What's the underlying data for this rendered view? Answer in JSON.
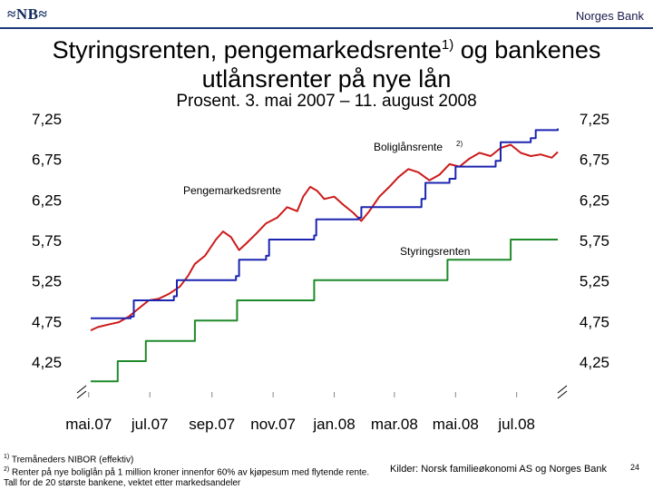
{
  "header": {
    "logo_text": "≈NB≈",
    "bank_name": "Norges Bank"
  },
  "title": {
    "main": "Styringsrenten, pengemarkedsrente",
    "main_sup": "1)",
    "main_rest": " og bankenes",
    "line2": "utlånsrenter på nye lån",
    "subtitle": "Prosent. 3. mai 2007 – 11. august 2008"
  },
  "footer": {
    "note1_marker": "1)",
    "note1": "Tremåneders NIBOR (effektiv)",
    "note2_marker": "2)",
    "note2": "Renter på nye boliglån på 1 million kroner innenfor 60% av kjøpesum med flytende rente. Tall for de 20 største bankene, vektet etter markedsandeler",
    "source": "Kilder: Norsk familieøkonomi AS og Norges Bank",
    "page_number": "24"
  },
  "colors": {
    "policy_rate": "#1f8a2a",
    "money_market": "#cc1a1a",
    "mortgage": "#1c25b0",
    "brand": "#1f3a7a"
  },
  "chart_data": {
    "type": "line",
    "xlim": [
      "2007-05-03",
      "2008-08-11"
    ],
    "ylim": [
      4.25,
      7.25
    ],
    "yticks": [
      7.25,
      6.75,
      6.25,
      5.75,
      5.25,
      4.75,
      4.25
    ],
    "ytick_labels": [
      "7,25",
      "6,75",
      "6,25",
      "5,75",
      "5,25",
      "4,75",
      "4,25"
    ],
    "xtick_labels": [
      "mai.07",
      "jul.07",
      "sep.07",
      "nov.07",
      "jan.08",
      "mar.08",
      "mai.08",
      "jul.08"
    ],
    "xtick_dates": [
      "2007-05-01",
      "2007-07-01",
      "2007-09-01",
      "2007-11-01",
      "2008-01-01",
      "2008-03-01",
      "2008-05-01",
      "2008-07-01"
    ],
    "axis_break": true,
    "grid": false,
    "series": [
      {
        "name": "Styringsrenten",
        "step": true,
        "points": [
          [
            "2007-05-03",
            4.0
          ],
          [
            "2007-05-30",
            4.25
          ],
          [
            "2007-06-27",
            4.5
          ],
          [
            "2007-08-15",
            4.75
          ],
          [
            "2007-09-26",
            5.0
          ],
          [
            "2007-10-31",
            5.0
          ],
          [
            "2007-12-12",
            5.25
          ],
          [
            "2008-03-12",
            5.25
          ],
          [
            "2008-03-13",
            5.25
          ],
          [
            "2008-04-23",
            5.5
          ],
          [
            "2008-06-25",
            5.75
          ],
          [
            "2008-08-11",
            5.75
          ]
        ]
      },
      {
        "name": "Pengemarkedsrente",
        "points": [
          [
            "2007-05-03",
            4.63
          ],
          [
            "2007-05-10",
            4.67
          ],
          [
            "2007-05-20",
            4.7
          ],
          [
            "2007-05-31",
            4.73
          ],
          [
            "2007-06-10",
            4.8
          ],
          [
            "2007-06-20",
            4.9
          ],
          [
            "2007-06-30",
            5.0
          ],
          [
            "2007-07-10",
            5.02
          ],
          [
            "2007-07-20",
            5.08
          ],
          [
            "2007-07-31",
            5.17
          ],
          [
            "2007-08-08",
            5.3
          ],
          [
            "2007-08-15",
            5.45
          ],
          [
            "2007-08-25",
            5.55
          ],
          [
            "2007-09-05",
            5.75
          ],
          [
            "2007-09-12",
            5.85
          ],
          [
            "2007-09-20",
            5.78
          ],
          [
            "2007-09-28",
            5.62
          ],
          [
            "2007-10-05",
            5.7
          ],
          [
            "2007-10-15",
            5.82
          ],
          [
            "2007-10-25",
            5.95
          ],
          [
            "2007-11-05",
            6.02
          ],
          [
            "2007-11-15",
            6.15
          ],
          [
            "2007-11-25",
            6.1
          ],
          [
            "2007-12-01",
            6.28
          ],
          [
            "2007-12-08",
            6.4
          ],
          [
            "2007-12-15",
            6.35
          ],
          [
            "2007-12-22",
            6.25
          ],
          [
            "2008-01-01",
            6.28
          ],
          [
            "2008-01-10",
            6.18
          ],
          [
            "2008-01-20",
            6.08
          ],
          [
            "2008-01-28",
            5.98
          ],
          [
            "2008-02-05",
            6.1
          ],
          [
            "2008-02-15",
            6.28
          ],
          [
            "2008-02-25",
            6.4
          ],
          [
            "2008-03-05",
            6.52
          ],
          [
            "2008-03-15",
            6.62
          ],
          [
            "2008-03-25",
            6.58
          ],
          [
            "2008-04-05",
            6.48
          ],
          [
            "2008-04-15",
            6.55
          ],
          [
            "2008-04-25",
            6.68
          ],
          [
            "2008-05-05",
            6.65
          ],
          [
            "2008-05-15",
            6.75
          ],
          [
            "2008-05-25",
            6.82
          ],
          [
            "2008-06-05",
            6.78
          ],
          [
            "2008-06-15",
            6.88
          ],
          [
            "2008-06-25",
            6.92
          ],
          [
            "2008-07-05",
            6.82
          ],
          [
            "2008-07-15",
            6.78
          ],
          [
            "2008-07-25",
            6.8
          ],
          [
            "2008-08-05",
            6.76
          ],
          [
            "2008-08-11",
            6.83
          ]
        ]
      },
      {
        "name": "Boliglånsrente",
        "name_sup": "2)",
        "step": true,
        "points": [
          [
            "2007-05-03",
            4.78
          ],
          [
            "2007-06-12",
            4.8
          ],
          [
            "2007-06-15",
            5.0
          ],
          [
            "2007-07-25",
            5.05
          ],
          [
            "2007-07-28",
            5.25
          ],
          [
            "2007-09-25",
            5.3
          ],
          [
            "2007-09-28",
            5.5
          ],
          [
            "2007-10-25",
            5.55
          ],
          [
            "2007-10-28",
            5.75
          ],
          [
            "2007-12-12",
            5.8
          ],
          [
            "2007-12-14",
            6.0
          ],
          [
            "2008-01-25",
            6.02
          ],
          [
            "2008-01-28",
            6.15
          ],
          [
            "2008-03-28",
            6.25
          ],
          [
            "2008-04-01",
            6.45
          ],
          [
            "2008-04-25",
            6.5
          ],
          [
            "2008-05-01",
            6.65
          ],
          [
            "2008-06-10",
            6.72
          ],
          [
            "2008-06-15",
            6.95
          ],
          [
            "2008-07-15",
            7.0
          ],
          [
            "2008-07-20",
            7.1
          ],
          [
            "2008-08-11",
            7.12
          ]
        ]
      }
    ],
    "annotations": [
      {
        "text": "Boliglånsrente",
        "sup": "2)"
      },
      {
        "text": "Pengemarkedsrente"
      },
      {
        "text": "Styringsrenten"
      }
    ]
  }
}
